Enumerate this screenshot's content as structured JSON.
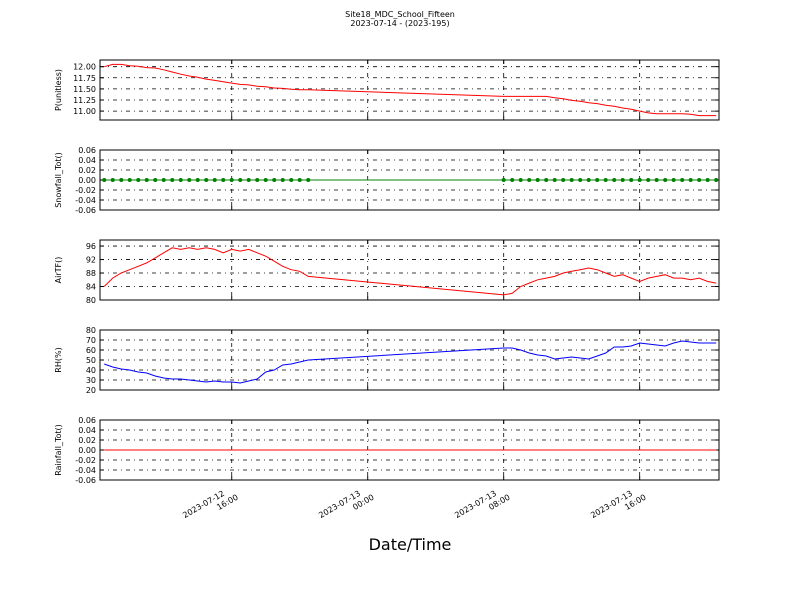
{
  "chart_data": [
    {
      "type": "line",
      "title": "Site18_MDC_School_Fifteen",
      "subtitle": "2023-07-14 - (2023-195)",
      "ylabel": "P(unitless)",
      "color": "#ff0000",
      "grid": true,
      "xlim": [
        "2023-07-12 08:15",
        "2023-07-13 20:40"
      ],
      "ylim": [
        10.8,
        12.15
      ],
      "yticks": [
        {
          "value": 11.0,
          "label": "11.00"
        },
        {
          "value": 11.25,
          "label": "11.25"
        },
        {
          "value": 11.5,
          "label": "11.50"
        },
        {
          "value": 11.75,
          "label": "11.75"
        },
        {
          "value": 12.0,
          "label": "12.00"
        }
      ],
      "x": [
        "2023-07-12 08:30",
        "2023-07-12 09:00",
        "2023-07-12 09:30",
        "2023-07-12 10:00",
        "2023-07-12 10:30",
        "2023-07-12 11:00",
        "2023-07-12 11:30",
        "2023-07-12 12:00",
        "2023-07-12 12:30",
        "2023-07-12 13:00",
        "2023-07-12 13:30",
        "2023-07-12 14:00",
        "2023-07-12 14:30",
        "2023-07-12 15:00",
        "2023-07-12 15:30",
        "2023-07-12 16:00",
        "2023-07-12 16:30",
        "2023-07-12 17:00",
        "2023-07-12 17:30",
        "2023-07-12 18:00",
        "2023-07-12 18:30",
        "2023-07-12 19:00",
        "2023-07-12 19:30",
        "2023-07-12 20:00",
        "2023-07-12 20:30",
        "2023-07-13 08:00",
        "2023-07-13 08:30",
        "2023-07-13 09:00",
        "2023-07-13 09:30",
        "2023-07-13 10:00",
        "2023-07-13 10:30",
        "2023-07-13 11:00",
        "2023-07-13 11:30",
        "2023-07-13 12:00",
        "2023-07-13 12:30",
        "2023-07-13 13:00",
        "2023-07-13 13:30",
        "2023-07-13 14:00",
        "2023-07-13 14:30",
        "2023-07-13 15:00",
        "2023-07-13 15:30",
        "2023-07-13 16:00",
        "2023-07-13 16:30",
        "2023-07-13 17:00",
        "2023-07-13 17:30",
        "2023-07-13 18:00",
        "2023-07-13 18:30",
        "2023-07-13 19:00",
        "2023-07-13 19:30",
        "2023-07-13 20:00",
        "2023-07-13 20:30"
      ],
      "values": [
        12.0,
        12.05,
        12.05,
        12.02,
        12.01,
        11.98,
        11.97,
        11.93,
        11.88,
        11.83,
        11.79,
        11.76,
        11.72,
        11.69,
        11.66,
        11.63,
        11.6,
        11.59,
        11.56,
        11.55,
        11.52,
        11.51,
        11.49,
        11.48,
        11.48,
        11.33,
        11.33,
        11.33,
        11.33,
        11.33,
        11.33,
        11.3,
        11.28,
        11.24,
        11.22,
        11.19,
        11.17,
        11.13,
        11.11,
        11.07,
        11.04,
        11.0,
        10.96,
        10.94,
        10.94,
        10.94,
        10.94,
        10.93,
        10.9,
        10.9,
        10.9
      ]
    },
    {
      "type": "line",
      "ylabel": "Snowfall_Tot()",
      "color": "#008000",
      "marker": "o",
      "grid": true,
      "xlim": [
        "2023-07-12 08:15",
        "2023-07-13 20:40"
      ],
      "ylim": [
        -0.06,
        0.06
      ],
      "yticks": [
        {
          "value": -0.06,
          "label": "-0.06"
        },
        {
          "value": -0.04,
          "label": "-0.04"
        },
        {
          "value": -0.02,
          "label": "-0.02"
        },
        {
          "value": 0,
          "label": "0.00"
        },
        {
          "value": 0.02,
          "label": "0.02"
        },
        {
          "value": 0.04,
          "label": "0.04"
        },
        {
          "value": 0.06,
          "label": "0.06"
        }
      ],
      "x": [
        "2023-07-12 08:30",
        "2023-07-12 09:00",
        "2023-07-12 09:30",
        "2023-07-12 10:00",
        "2023-07-12 10:30",
        "2023-07-12 11:00",
        "2023-07-12 11:30",
        "2023-07-12 12:00",
        "2023-07-12 12:30",
        "2023-07-12 13:00",
        "2023-07-12 13:30",
        "2023-07-12 14:00",
        "2023-07-12 14:30",
        "2023-07-12 15:00",
        "2023-07-12 15:30",
        "2023-07-12 16:00",
        "2023-07-12 16:30",
        "2023-07-12 17:00",
        "2023-07-12 17:30",
        "2023-07-12 18:00",
        "2023-07-12 18:30",
        "2023-07-12 19:00",
        "2023-07-12 19:30",
        "2023-07-12 20:00",
        "2023-07-12 20:30",
        "2023-07-13 08:00",
        "2023-07-13 08:30",
        "2023-07-13 09:00",
        "2023-07-13 09:30",
        "2023-07-13 10:00",
        "2023-07-13 10:30",
        "2023-07-13 11:00",
        "2023-07-13 11:30",
        "2023-07-13 12:00",
        "2023-07-13 12:30",
        "2023-07-13 13:00",
        "2023-07-13 13:30",
        "2023-07-13 14:00",
        "2023-07-13 14:30",
        "2023-07-13 15:00",
        "2023-07-13 15:30",
        "2023-07-13 16:00",
        "2023-07-13 16:30",
        "2023-07-13 17:00",
        "2023-07-13 17:30",
        "2023-07-13 18:00",
        "2023-07-13 18:30",
        "2023-07-13 19:00",
        "2023-07-13 19:30",
        "2023-07-13 20:00",
        "2023-07-13 20:30"
      ],
      "values": [
        0,
        0,
        0,
        0,
        0,
        0,
        0,
        0,
        0,
        0,
        0,
        0,
        0,
        0,
        0,
        0,
        0,
        0,
        0,
        0,
        0,
        0,
        0,
        0,
        0,
        0,
        0,
        0,
        0,
        0,
        0,
        0,
        0,
        0,
        0,
        0,
        0,
        0,
        0,
        0,
        0,
        0,
        0,
        0,
        0,
        0,
        0,
        0,
        0,
        0,
        0
      ]
    },
    {
      "type": "line",
      "ylabel": "AirTF()",
      "color": "#ff0000",
      "grid": true,
      "xlim": [
        "2023-07-12 08:15",
        "2023-07-13 20:40"
      ],
      "ylim": [
        80,
        97.8
      ],
      "yticks": [
        80,
        84,
        88,
        92,
        96
      ],
      "x": [
        "2023-07-12 08:30",
        "2023-07-12 09:00",
        "2023-07-12 09:30",
        "2023-07-12 10:00",
        "2023-07-12 10:30",
        "2023-07-12 11:00",
        "2023-07-12 11:30",
        "2023-07-12 12:00",
        "2023-07-12 12:30",
        "2023-07-12 13:00",
        "2023-07-12 13:30",
        "2023-07-12 14:00",
        "2023-07-12 14:30",
        "2023-07-12 15:00",
        "2023-07-12 15:30",
        "2023-07-12 16:00",
        "2023-07-12 16:30",
        "2023-07-12 17:00",
        "2023-07-12 17:30",
        "2023-07-12 18:00",
        "2023-07-12 18:30",
        "2023-07-12 19:00",
        "2023-07-12 19:30",
        "2023-07-12 20:00",
        "2023-07-12 20:30",
        "2023-07-13 08:00",
        "2023-07-13 08:30",
        "2023-07-13 09:00",
        "2023-07-13 09:30",
        "2023-07-13 10:00",
        "2023-07-13 10:30",
        "2023-07-13 11:00",
        "2023-07-13 11:30",
        "2023-07-13 12:00",
        "2023-07-13 12:30",
        "2023-07-13 13:00",
        "2023-07-13 13:30",
        "2023-07-13 14:00",
        "2023-07-13 14:30",
        "2023-07-13 15:00",
        "2023-07-13 15:30",
        "2023-07-13 16:00",
        "2023-07-13 16:30",
        "2023-07-13 17:00",
        "2023-07-13 17:30",
        "2023-07-13 18:00",
        "2023-07-13 18:30",
        "2023-07-13 19:00",
        "2023-07-13 19:30",
        "2023-07-13 20:00",
        "2023-07-13 20:30"
      ],
      "values": [
        84,
        86.5,
        88,
        89,
        90,
        91,
        92.5,
        94,
        95.5,
        95,
        95.5,
        95,
        95.5,
        95,
        94,
        95,
        94.5,
        95,
        94,
        93,
        91.5,
        90,
        89,
        88.5,
        87,
        81.5,
        82,
        84,
        85,
        86,
        86.5,
        87,
        88,
        88.5,
        89,
        89.5,
        89,
        88,
        87,
        87.5,
        86.5,
        85.5,
        86.5,
        87,
        87.5,
        86.5,
        86.5,
        86,
        86.5,
        85.5,
        85
      ]
    },
    {
      "type": "line",
      "ylabel": "RH(%)",
      "color": "#0000ff",
      "grid": true,
      "xlim": [
        "2023-07-12 08:15",
        "2023-07-13 20:40"
      ],
      "ylim": [
        20,
        80
      ],
      "yticks": [
        20,
        30,
        40,
        50,
        60,
        70,
        80
      ],
      "x": [
        "2023-07-12 08:30",
        "2023-07-12 09:00",
        "2023-07-12 09:30",
        "2023-07-12 10:00",
        "2023-07-12 10:30",
        "2023-07-12 11:00",
        "2023-07-12 11:30",
        "2023-07-12 12:00",
        "2023-07-12 12:30",
        "2023-07-12 13:00",
        "2023-07-12 13:30",
        "2023-07-12 14:00",
        "2023-07-12 14:30",
        "2023-07-12 15:00",
        "2023-07-12 15:30",
        "2023-07-12 16:00",
        "2023-07-12 16:30",
        "2023-07-12 17:00",
        "2023-07-12 17:30",
        "2023-07-12 18:00",
        "2023-07-12 18:30",
        "2023-07-12 19:00",
        "2023-07-12 19:30",
        "2023-07-12 20:00",
        "2023-07-12 20:30",
        "2023-07-13 08:00",
        "2023-07-13 08:30",
        "2023-07-13 09:00",
        "2023-07-13 09:30",
        "2023-07-13 10:00",
        "2023-07-13 10:30",
        "2023-07-13 11:00",
        "2023-07-13 11:30",
        "2023-07-13 12:00",
        "2023-07-13 12:30",
        "2023-07-13 13:00",
        "2023-07-13 13:30",
        "2023-07-13 14:00",
        "2023-07-13 14:30",
        "2023-07-13 15:00",
        "2023-07-13 15:30",
        "2023-07-13 16:00",
        "2023-07-13 16:30",
        "2023-07-13 17:00",
        "2023-07-13 17:30",
        "2023-07-13 18:00",
        "2023-07-13 18:30",
        "2023-07-13 19:00",
        "2023-07-13 19:30",
        "2023-07-13 20:00",
        "2023-07-13 20:30"
      ],
      "values": [
        46,
        43,
        41,
        40,
        38,
        37,
        34,
        32,
        31,
        31,
        30,
        29,
        28,
        29,
        28,
        28,
        27,
        29,
        31,
        38,
        40,
        45,
        46,
        48,
        50,
        62,
        62,
        60,
        57,
        55,
        54,
        51,
        52,
        53,
        52,
        51,
        54,
        57,
        63,
        63,
        64,
        67,
        66,
        65,
        64,
        67,
        69,
        68,
        67,
        67,
        67
      ]
    },
    {
      "type": "line",
      "ylabel": "Rainfall_Tot()",
      "xlabel": "Date/Time",
      "color": "#ff0000",
      "grid": true,
      "xlim": [
        "2023-07-12 08:15",
        "2023-07-13 20:40"
      ],
      "ylim": [
        -0.06,
        0.06
      ],
      "xticks": [
        "2023-07-12 16:00",
        "2023-07-13 00:00",
        "2023-07-13 08:00",
        "2023-07-13 16:00"
      ],
      "yticks": [
        {
          "value": -0.06,
          "label": "-0.06"
        },
        {
          "value": -0.04,
          "label": "-0.04"
        },
        {
          "value": -0.02,
          "label": "-0.02"
        },
        {
          "value": 0,
          "label": "0.00"
        },
        {
          "value": 0.02,
          "label": "0.02"
        },
        {
          "value": 0.04,
          "label": "0.04"
        },
        {
          "value": 0.06,
          "label": "0.06"
        }
      ],
      "x": [
        "2023-07-12 08:30",
        "2023-07-12 09:00",
        "2023-07-12 09:30",
        "2023-07-12 10:00",
        "2023-07-12 10:30",
        "2023-07-12 11:00",
        "2023-07-12 11:30",
        "2023-07-12 12:00",
        "2023-07-12 12:30",
        "2023-07-12 13:00",
        "2023-07-12 13:30",
        "2023-07-12 14:00",
        "2023-07-12 14:30",
        "2023-07-12 15:00",
        "2023-07-12 15:30",
        "2023-07-12 16:00",
        "2023-07-12 16:30",
        "2023-07-12 17:00",
        "2023-07-12 17:30",
        "2023-07-12 18:00",
        "2023-07-12 18:30",
        "2023-07-12 19:00",
        "2023-07-12 19:30",
        "2023-07-12 20:00",
        "2023-07-12 20:30",
        "2023-07-13 08:00",
        "2023-07-13 08:30",
        "2023-07-13 09:00",
        "2023-07-13 09:30",
        "2023-07-13 10:00",
        "2023-07-13 10:30",
        "2023-07-13 11:00",
        "2023-07-13 11:30",
        "2023-07-13 12:00",
        "2023-07-13 12:30",
        "2023-07-13 13:00",
        "2023-07-13 13:30",
        "2023-07-13 14:00",
        "2023-07-13 14:30",
        "2023-07-13 15:00",
        "2023-07-13 15:30",
        "2023-07-13 16:00",
        "2023-07-13 16:30",
        "2023-07-13 17:00",
        "2023-07-13 17:30",
        "2023-07-13 18:00",
        "2023-07-13 18:30",
        "2023-07-13 19:00",
        "2023-07-13 19:30",
        "2023-07-13 20:00",
        "2023-07-13 20:30"
      ],
      "values": [
        0,
        0,
        0,
        0,
        0,
        0,
        0,
        0,
        0,
        0,
        0,
        0,
        0,
        0,
        0,
        0,
        0,
        0,
        0,
        0,
        0,
        0,
        0,
        0,
        0,
        0,
        0,
        0,
        0,
        0,
        0,
        0,
        0,
        0,
        0,
        0,
        0,
        0,
        0,
        0,
        0,
        0,
        0,
        0,
        0,
        0,
        0,
        0,
        0,
        0,
        0
      ]
    }
  ]
}
